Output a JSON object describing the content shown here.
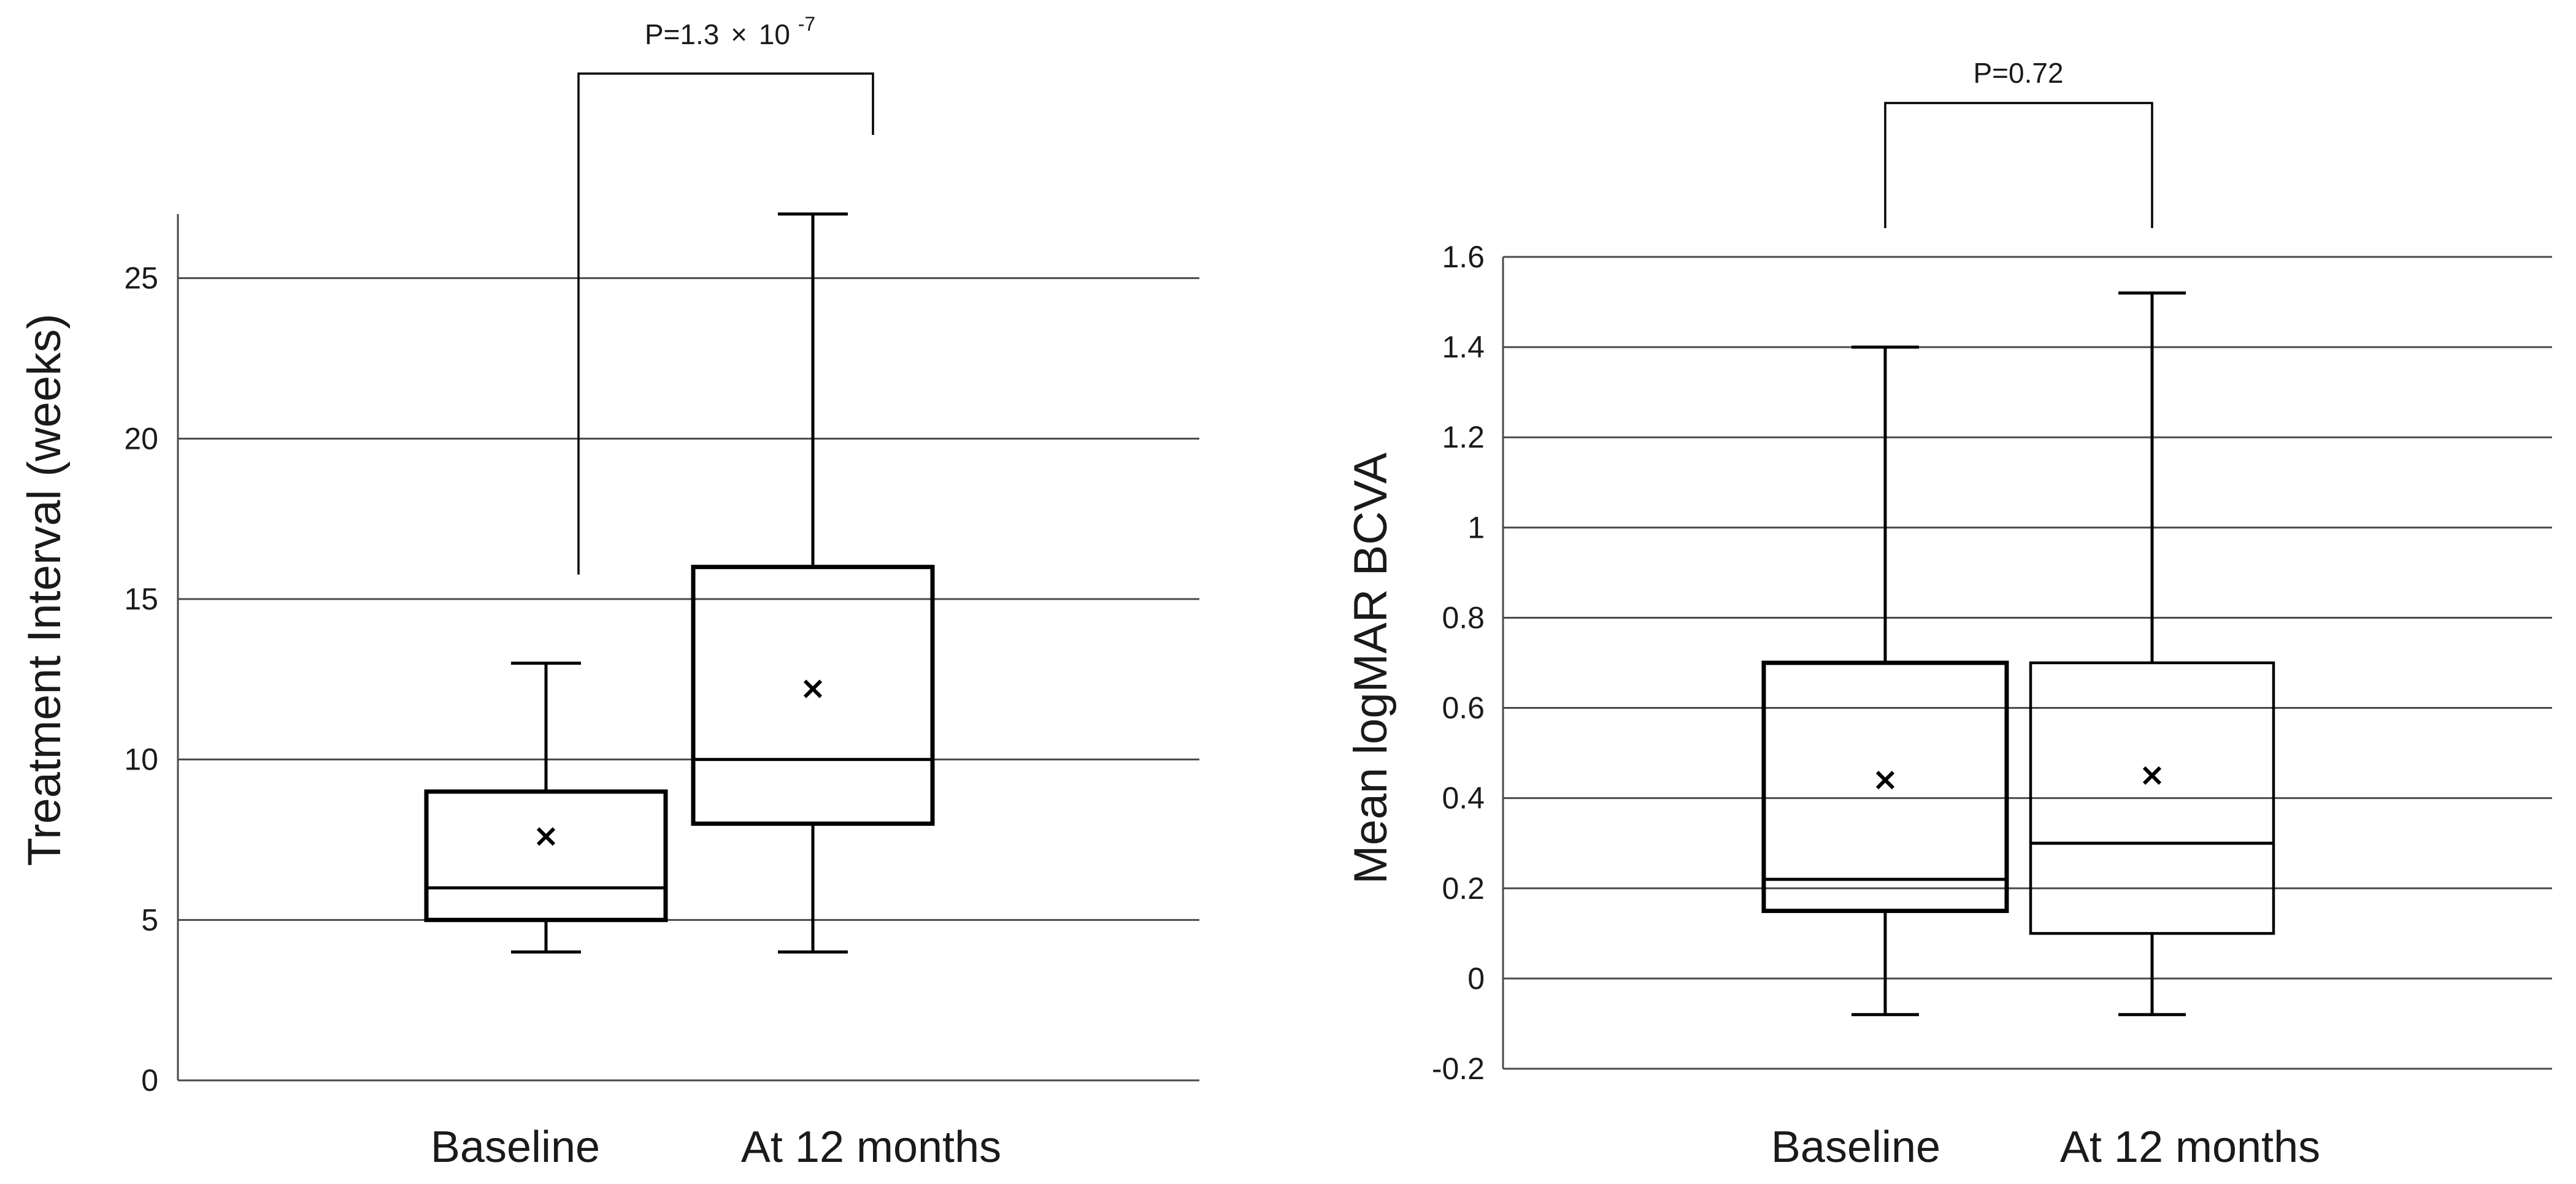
{
  "chart_data": [
    {
      "type": "box",
      "title": "",
      "xlabel": "",
      "ylabel": "Treatment Interval (weeks)",
      "ylim": [
        0,
        27
      ],
      "yticks": [
        0,
        5,
        10,
        15,
        20,
        25
      ],
      "ytick_labels": [
        "0",
        "5",
        "10",
        "15",
        "20",
        "25"
      ],
      "grid": true,
      "categories": [
        "Baseline",
        "At 12 months"
      ],
      "boxes": [
        {
          "name": "Baseline",
          "min": 4,
          "q1": 5,
          "median": 6,
          "q3": 9,
          "max": 13,
          "mean": 7.6
        },
        {
          "name": "At 12 months",
          "min": 4,
          "q1": 8,
          "median": 10,
          "q3": 16,
          "max": 27,
          "mean": 12.2
        }
      ],
      "comparison": {
        "label_prefix": "P=1.3",
        "label_times": "×",
        "label_base": "10",
        "label_exp": "-7"
      }
    },
    {
      "type": "box",
      "title": "",
      "xlabel": "",
      "ylabel": "Mean logMAR BCVA",
      "ylim": [
        -0.2,
        1.6
      ],
      "yticks": [
        -0.2,
        0,
        0.2,
        0.4,
        0.6,
        0.8,
        1,
        1.2,
        1.4,
        1.6
      ],
      "ytick_labels": [
        "-0.2",
        "0",
        "0.2",
        "0.4",
        "0.6",
        "0.8",
        "1",
        "1.2",
        "1.4",
        "1.6"
      ],
      "grid": true,
      "categories": [
        "Baseline",
        "At 12 months"
      ],
      "boxes": [
        {
          "name": "Baseline",
          "min": -0.08,
          "q1": 0.15,
          "median": 0.22,
          "q3": 0.7,
          "max": 1.4,
          "mean": 0.44
        },
        {
          "name": "At 12 months",
          "min": -0.08,
          "q1": 0.1,
          "median": 0.3,
          "q3": 0.7,
          "max": 1.52,
          "mean": 0.45
        }
      ],
      "comparison": {
        "label": "P=0.72"
      }
    }
  ]
}
